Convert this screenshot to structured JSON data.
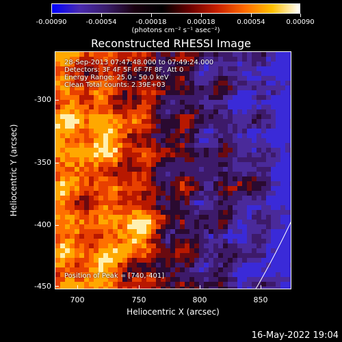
{
  "colorbar": {
    "tick_labels": [
      "-0.00090",
      "-0.00054",
      "-0.00018",
      "0.00018",
      "0.00054",
      "0.00090"
    ],
    "units_label": "(photons cm⁻² s⁻¹ asec⁻²)"
  },
  "title": "Reconstructed RHESSI Image",
  "info": {
    "time_range": "28-Sep-2013 07:47:48.000 to 07:49:24.000",
    "detectors": "Detectors: 3F 4F 5F 6F 7F 8F, Att 0",
    "energy": "Energy Range: 25.0 - 50.0 keV",
    "clean": "Clean     Total counts: 2.39E+03",
    "peak": "Position of Peak = [740,-401]"
  },
  "axes": {
    "xlabel": "Heliocentric X (arcsec)",
    "ylabel": "Heliocentric Y (arcsec)",
    "xticks": [
      "700",
      "750",
      "800",
      "850"
    ],
    "yticks": [
      "-300",
      "-350",
      "-400",
      "-450"
    ],
    "xlim": [
      680,
      873
    ],
    "ylim": [
      -452,
      -258
    ]
  },
  "timestamp": "16-May-2022 19:04",
  "colors": {
    "background": "#000000",
    "text": "#ffffff",
    "colormap": [
      "#0000ff",
      "#3a2aa0",
      "#4a1f78",
      "#2a0b2e",
      "#6a0f10",
      "#c02000",
      "#ff5a00",
      "#ffb000",
      "#fff6c0"
    ]
  }
}
